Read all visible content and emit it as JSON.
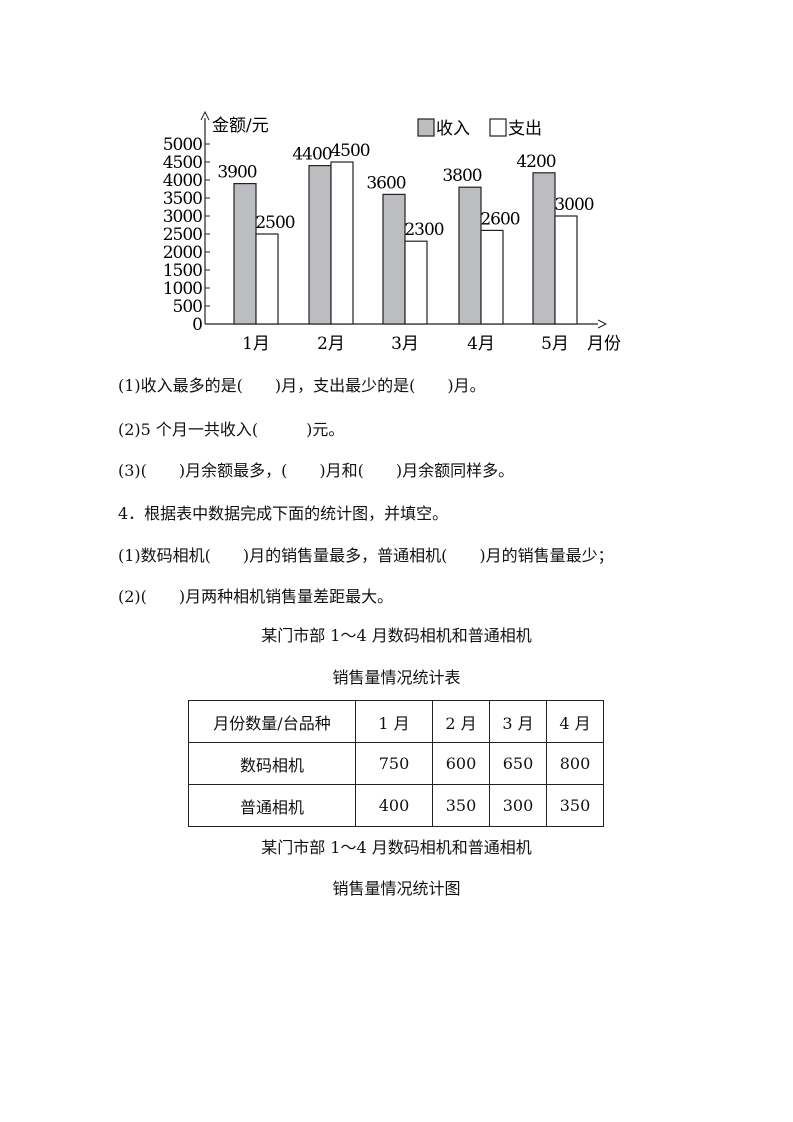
{
  "chart_data": {
    "type": "bar",
    "ylabel": "金额/元",
    "xlabel": "月份",
    "categories": [
      "1月",
      "2月",
      "3月",
      "4月",
      "5月"
    ],
    "yticks": [
      0,
      500,
      1000,
      1500,
      2000,
      2500,
      3000,
      3500,
      4000,
      4500,
      5000
    ],
    "ylim": [
      0,
      5000
    ],
    "legend_position": "top-right",
    "grid": false,
    "series": [
      {
        "name": "收入",
        "color": "#bcbdc0",
        "values": [
          3900,
          4400,
          3600,
          3800,
          4200
        ]
      },
      {
        "name": "支出",
        "color": "#ffffff",
        "values": [
          2500,
          4500,
          2300,
          2600,
          3000
        ]
      }
    ]
  },
  "questions": {
    "q1": "(1)收入最多的是(　　)月，支出最少的是(　　)月。",
    "q2": "(2)5 个月一共收入(　　　)元。",
    "q3": "(3)(　　)月余额最多，(　　)月和(　　)月余额同样多。",
    "q4": "4．根据表中数据完成下面的统计图，并填空。",
    "q4_1": "(1)数码相机(　　)月的销售量最多，普通相机(　　)月的销售量最少；",
    "q4_2": "(2)(　　)月两种相机销售量差距最大。"
  },
  "table_title_1": "某门市部 1～4 月数码相机和普通相机",
  "table_title_2": "销售量情况统计表",
  "table": {
    "header": [
      "月份数量/台品种",
      "1 月",
      "2 月",
      "3 月",
      "4 月"
    ],
    "rows": [
      [
        "数码相机",
        "750",
        "600",
        "650",
        "800"
      ],
      [
        "普通相机",
        "400",
        "350",
        "300",
        "350"
      ]
    ]
  },
  "figure_title_1": "某门市部 1～4 月数码相机和普通相机",
  "figure_title_2": "销售量情况统计图"
}
